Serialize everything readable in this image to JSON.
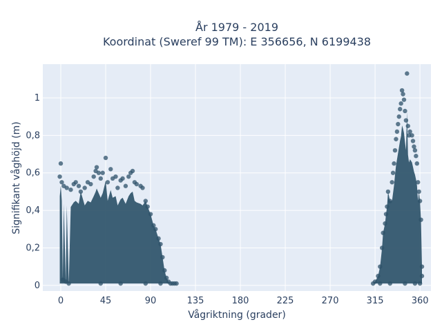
{
  "chart_data": {
    "type": "scatter",
    "title": "År 1979 - 2019",
    "subtitle": "Koordinat (Sweref 99 TM): E 356656, N 6199438",
    "xlabel": "Vågriktning (grader)",
    "ylabel": "Signifikant våghöjd (m)",
    "xlim": [
      -18,
      371
    ],
    "ylim": [
      -0.03,
      1.18
    ],
    "xticks": [
      0,
      45,
      90,
      135,
      180,
      225,
      270,
      315,
      360
    ],
    "xtick_labels": [
      "0",
      "45",
      "90",
      "135",
      "180",
      "225",
      "270",
      "315",
      "360"
    ],
    "yticks": [
      0,
      0.2,
      0.4,
      0.6,
      0.8,
      1
    ],
    "ytick_labels": [
      "0",
      "0,2",
      "0,4",
      "0,6",
      "0,8",
      "1"
    ],
    "grid": true,
    "marker_color": "#2e5269",
    "plot_bg": "#e5ecf6",
    "series": [
      {
        "points": [
          [
            0,
            0.65
          ],
          [
            -1,
            0.58
          ],
          [
            1,
            0.55
          ],
          [
            3,
            0.53
          ],
          [
            6,
            0.52
          ],
          [
            10,
            0.51
          ],
          [
            13,
            0.54
          ],
          [
            15,
            0.55
          ],
          [
            18,
            0.53
          ],
          [
            20,
            0.5
          ],
          [
            24,
            0.52
          ],
          [
            27,
            0.55
          ],
          [
            30,
            0.54
          ],
          [
            33,
            0.58
          ],
          [
            35,
            0.61
          ],
          [
            36,
            0.63
          ],
          [
            38,
            0.6
          ],
          [
            40,
            0.57
          ],
          [
            42,
            0.6
          ],
          [
            45,
            0.68
          ],
          [
            47,
            0.55
          ],
          [
            50,
            0.62
          ],
          [
            52,
            0.57
          ],
          [
            55,
            0.58
          ],
          [
            57,
            0.52
          ],
          [
            60,
            0.56
          ],
          [
            62,
            0.57
          ],
          [
            65,
            0.53
          ],
          [
            68,
            0.58
          ],
          [
            70,
            0.6
          ],
          [
            72,
            0.61
          ],
          [
            74,
            0.55
          ],
          [
            76,
            0.54
          ],
          [
            80,
            0.53
          ],
          [
            82,
            0.52
          ],
          [
            85,
            0.45
          ],
          [
            87,
            0.42
          ],
          [
            90,
            0.38
          ],
          [
            93,
            0.32
          ],
          [
            95,
            0.3
          ],
          [
            98,
            0.25
          ],
          [
            100,
            0.22
          ],
          [
            102,
            0.15
          ],
          [
            104,
            0.08
          ],
          [
            106,
            0.04
          ],
          [
            108,
            0.02
          ],
          [
            110,
            0.01
          ],
          [
            112,
            0.01
          ],
          [
            114,
            0.01
          ],
          [
            116,
            0.01
          ],
          [
            2,
            0.03
          ],
          [
            5,
            0.02
          ],
          [
            8,
            0.01
          ],
          [
            40,
            0.01
          ],
          [
            60,
            0.01
          ],
          [
            85,
            0.01
          ],
          [
            100,
            0.01
          ]
        ]
      },
      {
        "points": [
          [
            313,
            0.01
          ],
          [
            315,
            0.02
          ],
          [
            318,
            0.05
          ],
          [
            320,
            0.1
          ],
          [
            322,
            0.2
          ],
          [
            323,
            0.28
          ],
          [
            325,
            0.33
          ],
          [
            326,
            0.38
          ],
          [
            327,
            0.42
          ],
          [
            328,
            0.5
          ],
          [
            330,
            0.45
          ],
          [
            332,
            0.55
          ],
          [
            333,
            0.6
          ],
          [
            334,
            0.65
          ],
          [
            335,
            0.72
          ],
          [
            336,
            0.78
          ],
          [
            337,
            0.82
          ],
          [
            338,
            0.86
          ],
          [
            339,
            0.9
          ],
          [
            340,
            0.94
          ],
          [
            341,
            0.97
          ],
          [
            342,
            1.04
          ],
          [
            343,
            1.02
          ],
          [
            344,
            0.99
          ],
          [
            345,
            0.93
          ],
          [
            346,
            0.88
          ],
          [
            347,
            1.13
          ],
          [
            348,
            0.85
          ],
          [
            349,
            0.8
          ],
          [
            350,
            0.82
          ],
          [
            352,
            0.8
          ],
          [
            353,
            0.77
          ],
          [
            354,
            0.74
          ],
          [
            355,
            0.72
          ],
          [
            356,
            0.69
          ],
          [
            357,
            0.65
          ],
          [
            358,
            0.55
          ],
          [
            359,
            0.5
          ],
          [
            360,
            0.45
          ],
          [
            361,
            0.35
          ],
          [
            362,
            0.1
          ],
          [
            362,
            0.05
          ],
          [
            320,
            0.01
          ],
          [
            330,
            0.01
          ],
          [
            345,
            0.01
          ],
          [
            355,
            0.01
          ],
          [
            360,
            0.01
          ]
        ]
      }
    ]
  }
}
